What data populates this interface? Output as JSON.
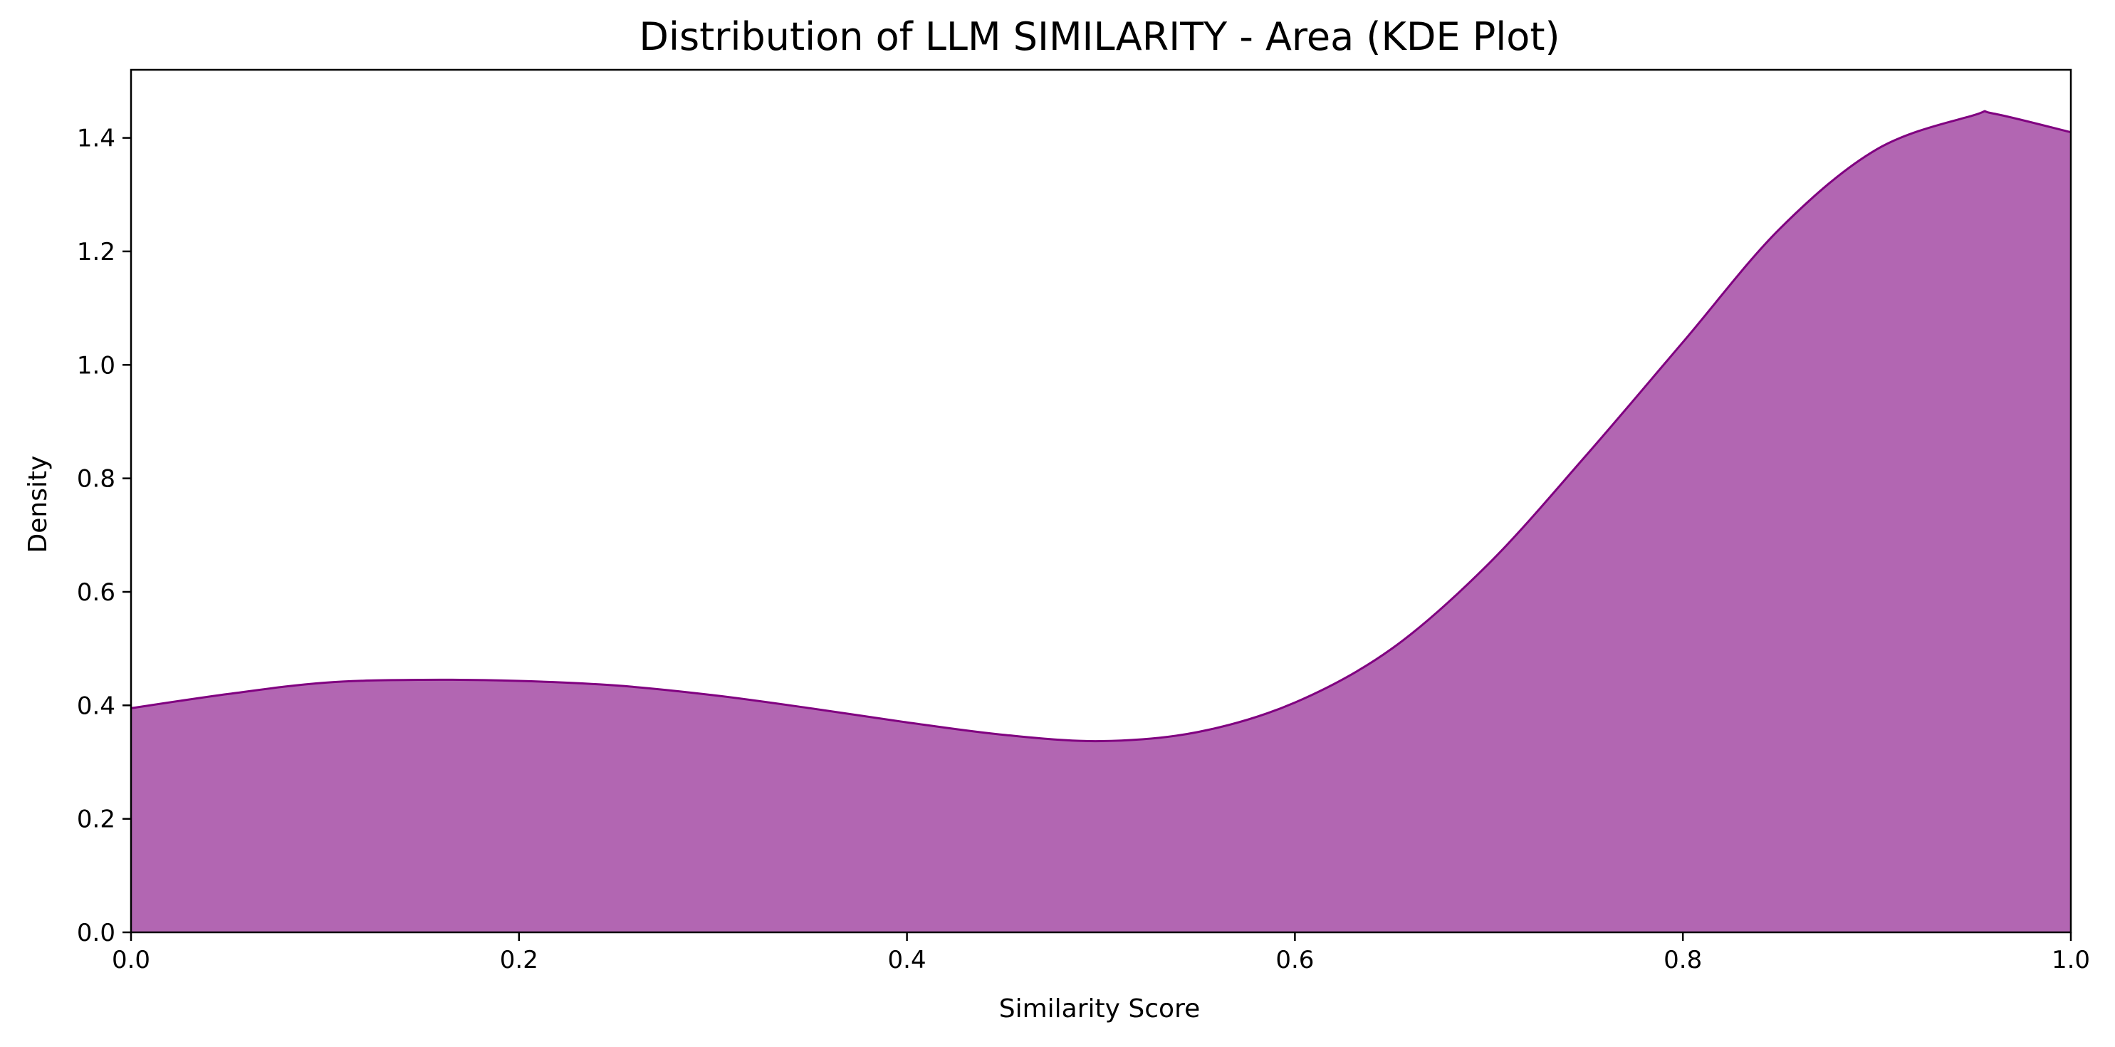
{
  "chart_data": {
    "type": "area",
    "title": "Distribution of LLM SIMILARITY - Area (KDE Plot)",
    "xlabel": "Similarity Score",
    "ylabel": "Density",
    "xlim": [
      0.0,
      1.0
    ],
    "ylim": [
      0.0,
      1.52
    ],
    "xticks": [
      0.0,
      0.2,
      0.4,
      0.6,
      0.8,
      1.0
    ],
    "xtick_labels": [
      "0.0",
      "0.2",
      "0.4",
      "0.6",
      "0.8",
      "1.0"
    ],
    "yticks": [
      0.0,
      0.2,
      0.4,
      0.6,
      0.8,
      1.0,
      1.2,
      1.4
    ],
    "ytick_labels": [
      "0.0",
      "0.2",
      "0.4",
      "0.6",
      "0.8",
      "1.0",
      "1.2",
      "1.4"
    ],
    "grid": false,
    "fill_color": "#b266b2",
    "line_color": "#800080",
    "series": [
      {
        "x": [
          0.0,
          0.05,
          0.1,
          0.15,
          0.2,
          0.25,
          0.3,
          0.35,
          0.4,
          0.45,
          0.5,
          0.55,
          0.6,
          0.65,
          0.7,
          0.75,
          0.8,
          0.85,
          0.9,
          0.95,
          0.96,
          1.0
        ],
        "y": [
          0.395,
          0.42,
          0.44,
          0.445,
          0.443,
          0.435,
          0.418,
          0.395,
          0.37,
          0.348,
          0.337,
          0.353,
          0.405,
          0.5,
          0.65,
          0.84,
          1.04,
          1.24,
          1.38,
          1.44,
          1.443,
          1.41
        ]
      }
    ]
  }
}
